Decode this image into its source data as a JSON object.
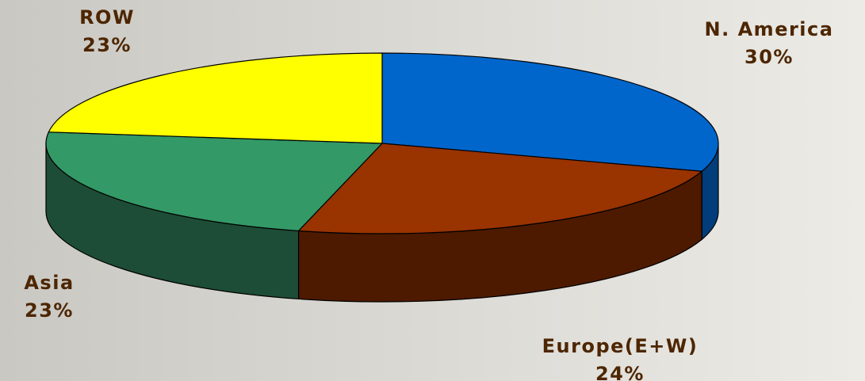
{
  "chart_data": {
    "type": "pie",
    "title": "",
    "style": "3d",
    "grid": false,
    "legend": "none",
    "slices": [
      {
        "label": "N. America",
        "value": 30,
        "value_label": "30%",
        "color": "#0066cc",
        "side_color": "#003d7a"
      },
      {
        "label": "Europe(E+W)",
        "value": 24,
        "value_label": "24%",
        "color": "#993300",
        "side_color": "#4d1a00"
      },
      {
        "label": "Asia",
        "value": 23,
        "value_label": "23%",
        "color": "#339966",
        "side_color": "#1d4d36"
      },
      {
        "label": "ROW",
        "value": 23,
        "value_label": "23%",
        "color": "#ffff00",
        "side_color": "#999900"
      }
    ]
  },
  "colors": {
    "label_text": "#4d2600",
    "outline": "#000000",
    "background_light": "#ecebe6",
    "background_dark": "#c9c8c3"
  }
}
